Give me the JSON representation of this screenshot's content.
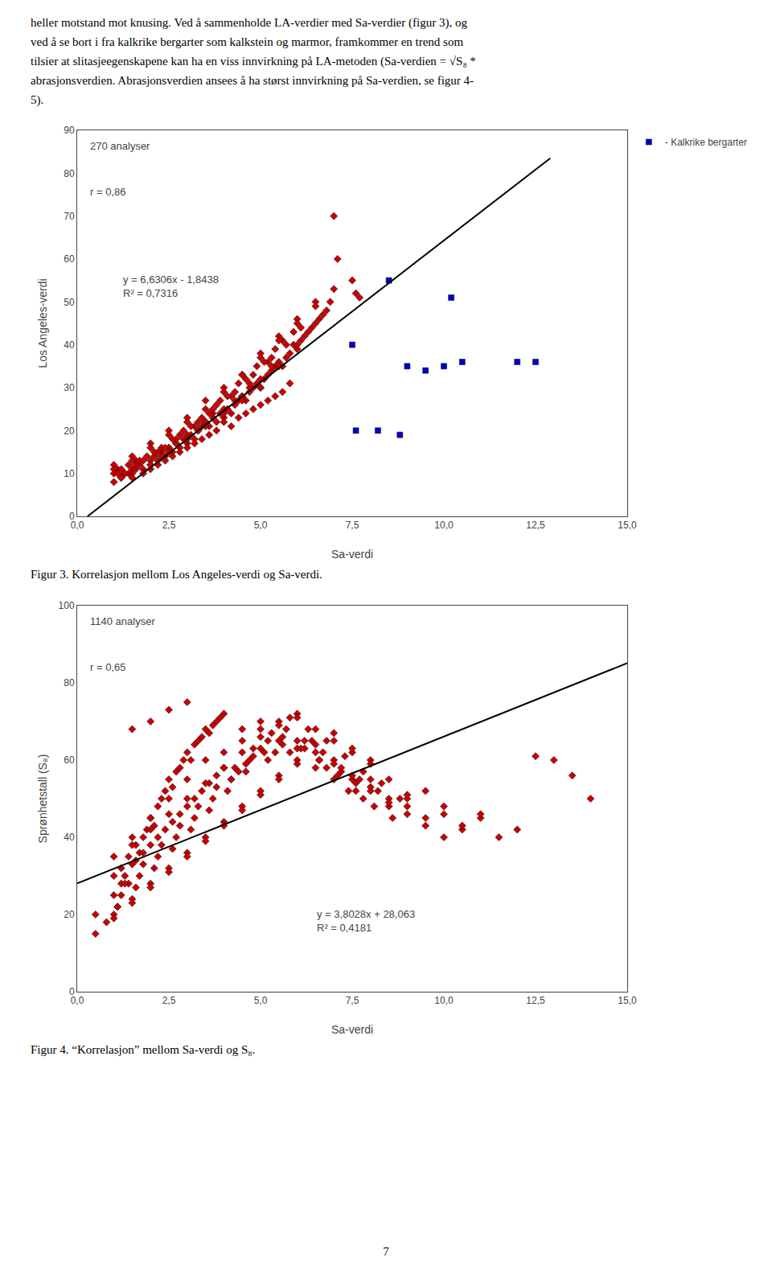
{
  "text": [
    "heller motstand mot knusing. Ved å sammenholde LA-verdier med Sa-verdier (figur 3), og",
    "ved å se bort i fra kalkrike bergarter som kalkstein og marmor, framkommer en trend som",
    "tilsier at slitasjeegenskapene kan ha en viss innvirkning på LA-metoden (Sa-verdien = √S₈ *",
    "abrasjonsverdien. Abrasjonsverdien ansees å ha størst innvirkning på Sa-verdien, se figur 4-",
    "5)."
  ],
  "page_number": "7",
  "chart_data": [
    {
      "type": "scatter",
      "title": "Figur 3. Korrelasjon mellom Los Angeles-verdi og Sa-verdi.",
      "xlabel": "Sa-verdi",
      "ylabel": "Los Angeles-verdi",
      "xlim": [
        0,
        15
      ],
      "ylim": [
        0,
        90
      ],
      "xticks": [
        {
          "value": 0.0,
          "label": "0,0"
        },
        {
          "value": 2.5,
          "label": "2,5"
        },
        {
          "value": 5.0,
          "label": "5,0"
        },
        {
          "value": 7.5,
          "label": "7,5"
        },
        {
          "value": 10.0,
          "label": "10,0"
        },
        {
          "value": 12.5,
          "label": "12,5"
        },
        {
          "value": 15.0,
          "label": "15,0"
        }
      ],
      "yticks": [
        0,
        10,
        20,
        30,
        40,
        50,
        60,
        70,
        80,
        90
      ],
      "grid": false,
      "legend": "top right",
      "annotations": [
        "270 analyser",
        "r = 0,86",
        "y = 6,6306x - 1,8438\nR² = 0,7316"
      ],
      "series": [
        {
          "type": "scatter",
          "color": "#cc0000",
          "marker": "diamond",
          "x": [
            1.0,
            1.1,
            1.2,
            1.3,
            1.4,
            1.5,
            1.6,
            1.7,
            1.8,
            1.9,
            2.0,
            2.1,
            2.2,
            2.3,
            2.4,
            2.5,
            2.6,
            2.7,
            2.8,
            2.9,
            3.0,
            3.1,
            3.2,
            3.3,
            3.4,
            3.5,
            3.6,
            3.7,
            3.8,
            3.9,
            4.0,
            4.1,
            4.2,
            4.3,
            4.4,
            4.5,
            4.6,
            4.7,
            4.8,
            4.9,
            5.0,
            5.1,
            5.2,
            5.3,
            5.4,
            5.5,
            5.6,
            5.7,
            5.8,
            5.9,
            6.0,
            6.1,
            6.2,
            6.3,
            6.4,
            6.5,
            6.6,
            6.7,
            6.8,
            6.9,
            7.0,
            7.1,
            7.5,
            7.6,
            7.7,
            1.0,
            1.2,
            1.4,
            1.6,
            1.8,
            2.0,
            2.2,
            2.4,
            2.6,
            2.8,
            3.0,
            3.2,
            3.4,
            3.6,
            3.8,
            4.0,
            4.2,
            4.4,
            4.6,
            4.8,
            5.0,
            5.2,
            5.4,
            5.6,
            5.8,
            1.5,
            2.0,
            2.5,
            3.0,
            3.5,
            4.0,
            4.5,
            5.0,
            2.3,
            2.7,
            3.3,
            3.7,
            4.3,
            4.7,
            5.3,
            1.2,
            1.7,
            2.2,
            2.7,
            3.2,
            3.7,
            4.2,
            4.7,
            5.2,
            5.7,
            1.5,
            2.0,
            2.5,
            3.0,
            3.5,
            4.0,
            4.5,
            5.0,
            5.5,
            6.0,
            1.3,
            1.8,
            2.3,
            2.8,
            3.3,
            3.8,
            4.3,
            4.8,
            5.3,
            1.0,
            1.5,
            2.0,
            2.5,
            3.0,
            3.5,
            4.0,
            4.5,
            5.0,
            5.5,
            6.0,
            6.5,
            1.1,
            1.6,
            2.1,
            2.6,
            3.1,
            3.6,
            4.1,
            4.6,
            5.1,
            5.6,
            6.1,
            2.4,
            2.9,
            3.4,
            3.9,
            4.4,
            4.9,
            5.4,
            5.9,
            1.0,
            1.5,
            2.0,
            2.5,
            3.0,
            3.5,
            4.0,
            4.5,
            5.0,
            5.5,
            6.0,
            6.5,
            7.0
          ],
          "values": [
            10,
            11,
            9,
            10,
            12,
            11,
            13,
            12,
            11,
            14,
            12,
            14,
            13,
            15,
            14,
            16,
            15,
            17,
            16,
            18,
            17,
            19,
            18,
            20,
            21,
            22,
            21,
            23,
            22,
            24,
            23,
            25,
            24,
            26,
            27,
            28,
            27,
            29,
            30,
            31,
            30,
            32,
            33,
            34,
            35,
            36,
            35,
            37,
            38,
            40,
            39,
            41,
            42,
            43,
            44,
            45,
            46,
            47,
            48,
            50,
            70,
            60,
            55,
            52,
            51,
            8,
            9,
            10,
            11,
            10,
            11,
            12,
            13,
            14,
            15,
            16,
            17,
            18,
            19,
            20,
            22,
            21,
            23,
            24,
            25,
            26,
            27,
            28,
            29,
            31,
            10,
            13,
            16,
            19,
            22,
            25,
            28,
            32,
            14,
            17,
            20,
            24,
            27,
            30,
            35,
            11,
            13,
            15,
            18,
            21,
            25,
            28,
            31,
            36,
            40,
            9,
            12,
            15,
            18,
            21,
            24,
            27,
            30,
            35,
            40,
            10,
            13,
            16,
            19,
            22,
            26,
            29,
            33,
            37,
            12,
            14,
            17,
            20,
            23,
            27,
            30,
            33,
            38,
            42,
            46,
            50,
            10,
            12,
            15,
            18,
            21,
            24,
            28,
            32,
            36,
            41,
            44,
            16,
            20,
            23,
            27,
            31,
            35,
            39,
            43,
            11,
            13,
            16,
            19,
            22,
            25,
            29,
            33,
            37,
            41,
            45,
            49,
            53
          ]
        },
        {
          "type": "scatter",
          "name": "- Kalkrike bergarter",
          "color": "#0000cc",
          "marker": "square",
          "x": [
            7.6,
            8.2,
            8.8,
            9.0,
            10.0,
            10.5,
            12.5,
            7.5,
            9.5,
            12.0,
            8.5,
            10.2
          ],
          "values": [
            20,
            20,
            19,
            35,
            35,
            36,
            36,
            40,
            34,
            36,
            55,
            51
          ]
        },
        {
          "type": "line",
          "color": "#000000",
          "line_style": "solid",
          "x": [
            0.28,
            12.9
          ],
          "values": [
            0.0,
            83.5
          ]
        }
      ]
    },
    {
      "type": "scatter",
      "title": "Figur 4. “Korrelasjon” mellom Sa-verdi og S₈.",
      "xlabel": "Sa-verdi",
      "ylabel": "Sprønhetstall (S₈)",
      "xlim": [
        0,
        15
      ],
      "ylim": [
        0,
        100
      ],
      "xticks": [
        {
          "value": 0.0,
          "label": "0,0"
        },
        {
          "value": 2.5,
          "label": "2,5"
        },
        {
          "value": 5.0,
          "label": "5,0"
        },
        {
          "value": 7.5,
          "label": "7,5"
        },
        {
          "value": 10.0,
          "label": "10,0"
        },
        {
          "value": 12.5,
          "label": "12,5"
        },
        {
          "value": 15.0,
          "label": "15,0"
        }
      ],
      "yticks": [
        0,
        20,
        40,
        60,
        80,
        100
      ],
      "grid": false,
      "annotations": [
        "1140 analyser",
        "r = 0,65",
        "y = 3,8028x + 28,063\nR² = 0,4181"
      ],
      "series": [
        {
          "type": "scatter",
          "color": "#cc0000",
          "marker": "diamond",
          "x": [
            0.5,
            0.8,
            1.0,
            1.1,
            1.2,
            1.3,
            1.4,
            1.5,
            1.6,
            1.7,
            1.8,
            1.9,
            2.0,
            2.1,
            2.2,
            2.3,
            2.4,
            2.5,
            2.6,
            2.7,
            2.8,
            2.9,
            3.0,
            3.1,
            3.2,
            3.3,
            3.4,
            3.5,
            3.6,
            3.7,
            3.8,
            3.9,
            4.0,
            4.5,
            5.0,
            5.5,
            6.0,
            6.5,
            7.0,
            7.5,
            8.0,
            8.5,
            9.0,
            9.5,
            10.0,
            10.5,
            11.0,
            11.5,
            12.0,
            13.0,
            1.0,
            1.2,
            1.4,
            1.6,
            1.8,
            2.0,
            2.2,
            2.4,
            2.6,
            2.8,
            3.0,
            3.2,
            3.4,
            3.6,
            3.8,
            4.0,
            4.2,
            4.4,
            4.6,
            4.8,
            5.0,
            5.2,
            5.4,
            5.6,
            5.8,
            6.0,
            6.2,
            6.4,
            6.6,
            6.8,
            7.0,
            7.2,
            7.4,
            7.6,
            7.8,
            8.0,
            8.5,
            9.0,
            9.5,
            10.0,
            1.5,
            2.0,
            2.5,
            3.0,
            3.5,
            4.0,
            4.5,
            5.0,
            5.5,
            6.0,
            1.0,
            1.5,
            2.0,
            2.5,
            3.0,
            3.5,
            4.0,
            4.5,
            5.0,
            5.5,
            6.0,
            6.5,
            7.0,
            7.5,
            8.0,
            1.2,
            1.7,
            2.2,
            2.7,
            3.2,
            3.7,
            4.2,
            4.7,
            5.2,
            5.7,
            6.2,
            6.7,
            7.2,
            7.7,
            8.2,
            1.0,
            1.5,
            2.0,
            2.5,
            3.0,
            3.5,
            4.0,
            4.5,
            5.0,
            5.5,
            6.0,
            6.5,
            7.0,
            7.5,
            8.0,
            8.5,
            9.0,
            1.3,
            1.8,
            2.3,
            2.8,
            3.3,
            3.8,
            4.3,
            4.8,
            5.3,
            5.8,
            6.3,
            6.8,
            7.3,
            7.8,
            8.3,
            8.8,
            1.1,
            1.6,
            2.1,
            2.6,
            3.1,
            3.6,
            4.1,
            4.6,
            5.1,
            5.6,
            6.1,
            6.6,
            7.1,
            7.6,
            8.1,
            8.6,
            0.5,
            1.0,
            1.5,
            2.0,
            2.5,
            3.0,
            3.5,
            4.0,
            4.5,
            5.0,
            5.5,
            6.0,
            6.5,
            7.0,
            7.5,
            8.0,
            8.5,
            9.0,
            9.5,
            10.0,
            10.5,
            11.0,
            2.0,
            2.5,
            3.0,
            1.5,
            12.5,
            13.5,
            14.0
          ],
          "values": [
            20,
            18,
            25,
            22,
            28,
            30,
            35,
            33,
            38,
            36,
            40,
            42,
            45,
            43,
            48,
            50,
            52,
            55,
            53,
            57,
            58,
            60,
            62,
            60,
            64,
            65,
            66,
            68,
            67,
            69,
            70,
            71,
            72,
            68,
            70,
            65,
            63,
            58,
            60,
            55,
            52,
            48,
            50,
            45,
            48,
            42,
            45,
            40,
            42,
            60,
            30,
            32,
            28,
            34,
            36,
            38,
            40,
            42,
            44,
            46,
            48,
            50,
            52,
            54,
            56,
            58,
            55,
            57,
            59,
            61,
            63,
            60,
            62,
            64,
            62,
            65,
            63,
            65,
            60,
            58,
            55,
            57,
            52,
            54,
            50,
            55,
            50,
            48,
            52,
            46,
            40,
            45,
            50,
            55,
            60,
            62,
            65,
            68,
            70,
            72,
            35,
            38,
            42,
            46,
            50,
            54,
            58,
            62,
            66,
            69,
            71,
            68,
            65,
            62,
            60,
            25,
            30,
            35,
            40,
            45,
            50,
            55,
            60,
            65,
            68,
            65,
            62,
            58,
            55,
            52,
            20,
            24,
            28,
            32,
            36,
            40,
            44,
            48,
            52,
            56,
            60,
            64,
            67,
            63,
            59,
            55,
            51,
            28,
            33,
            38,
            43,
            48,
            53,
            58,
            63,
            67,
            71,
            68,
            65,
            61,
            57,
            54,
            50,
            22,
            27,
            32,
            37,
            42,
            47,
            52,
            57,
            62,
            66,
            63,
            60,
            56,
            52,
            48,
            45,
            15,
            19,
            23,
            27,
            31,
            35,
            39,
            43,
            47,
            51,
            55,
            59,
            62,
            59,
            56,
            53,
            49,
            46,
            43,
            40,
            43,
            46,
            70,
            73,
            75,
            68,
            61,
            56,
            50
          ]
        },
        {
          "type": "line",
          "color": "#000000",
          "line_style": "solid",
          "x": [
            0.0,
            15.0
          ],
          "values": [
            28.063,
            85.105
          ]
        }
      ]
    }
  ]
}
